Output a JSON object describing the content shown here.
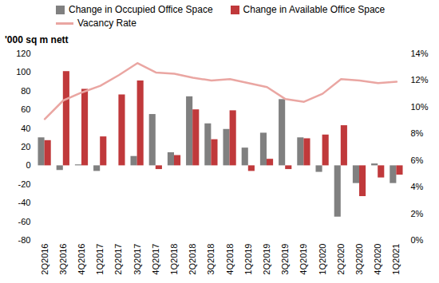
{
  "chart_data": {
    "type": "bar",
    "ylabel": "'000 sq m nett",
    "categories": [
      "2Q2016",
      "3Q2016",
      "4Q2016",
      "1Q2017",
      "2Q2017",
      "3Q2017",
      "4Q2017",
      "1Q2018",
      "2Q2018",
      "3Q2018",
      "4Q2018",
      "1Q2019",
      "2Q2019",
      "3Q2019",
      "4Q2019",
      "1Q2020",
      "2Q2020",
      "3Q2020",
      "4Q2020",
      "1Q2021"
    ],
    "series": [
      {
        "name": "Change in Occupied Office Space",
        "color": "#808080",
        "values": [
          30,
          -5,
          1,
          -6,
          0,
          10,
          55,
          14,
          74,
          45,
          39,
          19,
          35,
          71,
          30,
          -7,
          -55,
          -19,
          2,
          -19
        ]
      },
      {
        "name": "Change in Available Office Space",
        "color": "#c0393b",
        "values": [
          27,
          101,
          82,
          31,
          76,
          91,
          -4,
          11,
          60,
          28,
          59,
          -6,
          7,
          -4,
          29,
          33,
          43,
          -33,
          -13,
          -10
        ]
      },
      {
        "name": "Vacancy Rate",
        "type": "line",
        "axis": "y2",
        "color": "#eaa6a2",
        "values": [
          9.1,
          10.5,
          11.1,
          11.6,
          12.4,
          13.3,
          12.6,
          12.5,
          12.2,
          12.0,
          12.1,
          11.8,
          11.5,
          10.6,
          10.4,
          11.0,
          12.1,
          12.0,
          11.8,
          11.9
        ]
      }
    ],
    "ylim": [
      -80,
      120
    ],
    "yticks": [
      -80,
      -60,
      -40,
      -20,
      0,
      20,
      40,
      60,
      80,
      100,
      120
    ],
    "y2lim": [
      0,
      14
    ],
    "y2ticks": [
      {
        "value": 0,
        "label": "0%"
      },
      {
        "value": 2,
        "label": "2%"
      },
      {
        "value": 4,
        "label": "4%"
      },
      {
        "value": 6,
        "label": "6%"
      },
      {
        "value": 8,
        "label": "8%"
      },
      {
        "value": 10,
        "label": "10%"
      },
      {
        "value": 12,
        "label": "12%"
      },
      {
        "value": 14,
        "label": "14%"
      }
    ],
    "legend": "top"
  }
}
